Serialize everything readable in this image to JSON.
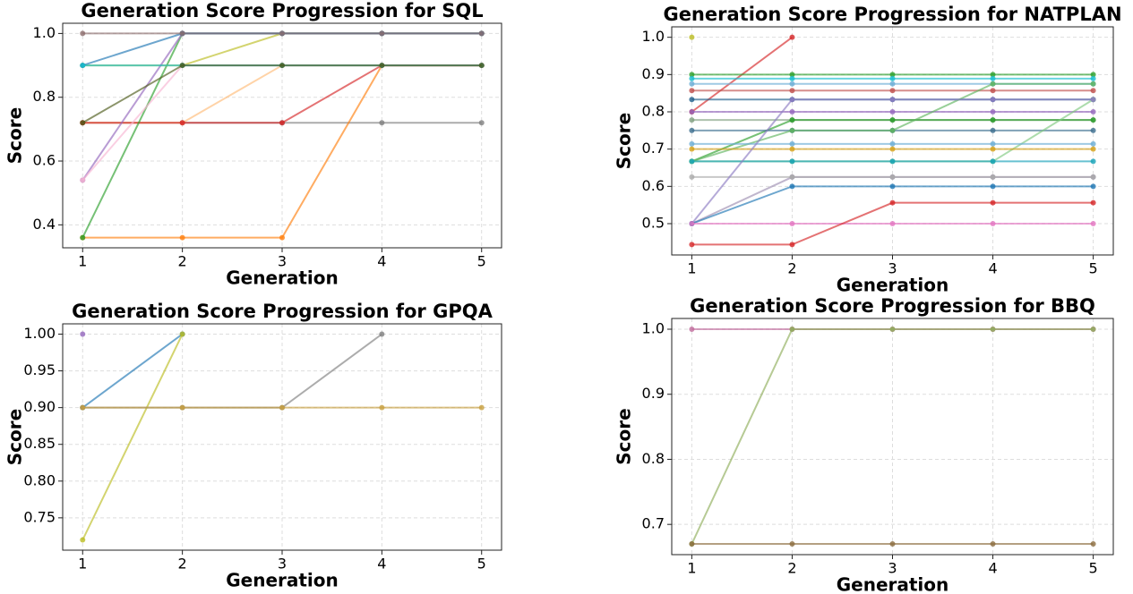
{
  "chart_data": [
    {
      "type": "line",
      "title": "Generation Score Progression for SQL",
      "x_label": "Generation",
      "y_label": "Score",
      "x": [
        1,
        2,
        3,
        4,
        5
      ],
      "xlim": [
        0.8,
        5.2
      ],
      "xticks": [
        1,
        2,
        3,
        4,
        5
      ],
      "ylim": [
        0.328,
        1.032
      ],
      "yticks": [
        0.4,
        0.6,
        0.8,
        {
          "value": 1,
          "label": "1.0"
        }
      ],
      "grid": true,
      "series": [
        {
          "color": "#7f7f7f",
          "values": [
            0.72,
            0.72,
            0.72,
            0.72,
            0.72
          ]
        },
        {
          "color": "#ff7f0e",
          "values": [
            0.36,
            0.36,
            0.36,
            0.9,
            0.9
          ]
        },
        {
          "color": "#ffbb78",
          "values": [
            0.72,
            0.72,
            0.9,
            0.9,
            0.9
          ]
        },
        {
          "color": "#d62728",
          "values": [
            0.72,
            0.72,
            0.72,
            0.9,
            0.9
          ]
        },
        {
          "color": "#2ca02c",
          "values": [
            0.36,
            1,
            1,
            1,
            1
          ]
        },
        {
          "color": "#bcbd22",
          "values": [
            0.9,
            0.9,
            1,
            1,
            1
          ]
        },
        {
          "color": "#9467bd",
          "values": [
            0.54,
            1,
            1,
            1,
            1
          ]
        },
        {
          "color": "#f7b6d2",
          "values": [
            0.54,
            0.9,
            0.9,
            0.9,
            0.9
          ]
        },
        {
          "color": "#1f77b4",
          "values": [
            0.9,
            1,
            1,
            1,
            1
          ]
        },
        {
          "color": "#17becf",
          "values": [
            0.9,
            0.9,
            0.9,
            0.9,
            0.9
          ]
        },
        {
          "color": "#4d5a1a",
          "values": [
            0.72,
            0.9,
            0.9,
            0.9,
            0.9
          ]
        },
        {
          "color": "#8c6d6d",
          "values": [
            1,
            1,
            1,
            1,
            1
          ]
        }
      ]
    },
    {
      "type": "line",
      "title": "Generation Score Progression for NATPLAN",
      "x_label": "Generation",
      "y_label": "Score",
      "x": [
        1,
        2,
        3,
        4,
        5
      ],
      "xlim": [
        0.8,
        5.2
      ],
      "xticks": [
        1,
        2,
        3,
        4,
        5
      ],
      "ylim": [
        0.416,
        1.028
      ],
      "yticks": [
        0.5,
        0.6,
        0.7,
        0.8,
        0.9,
        {
          "value": 1,
          "label": "1.0"
        }
      ],
      "grid": true,
      "series": [
        {
          "color": "#bcbd22",
          "values": [
            1,
            null,
            null,
            null,
            null
          ]
        },
        {
          "color": "#d62728",
          "values": [
            0.8,
            1,
            null,
            null,
            null
          ]
        },
        {
          "color": "#2ca02c",
          "values": [
            0.9,
            0.9,
            0.9,
            0.9,
            0.9
          ]
        },
        {
          "color": "#17becf",
          "values": [
            0.889,
            0.889,
            0.889,
            0.889,
            0.889
          ]
        },
        {
          "color": "#6baed6",
          "values": [
            0.875,
            0.875,
            0.875,
            0.875,
            0.875
          ]
        },
        {
          "color": "#c0504d",
          "values": [
            0.857,
            0.857,
            0.857,
            0.857,
            0.857
          ]
        },
        {
          "color": "#1f5f8b",
          "values": [
            0.833,
            0.833,
            0.833,
            0.833,
            0.833
          ]
        },
        {
          "color": "#9467bd",
          "values": [
            0.8,
            0.8,
            0.8,
            0.8,
            0.8
          ]
        },
        {
          "color": "#7f9f7f",
          "values": [
            0.778,
            0.778,
            0.778,
            0.778,
            0.778
          ]
        },
        {
          "color": "#2ca02c",
          "values": [
            0.667,
            0.778,
            0.778,
            0.778,
            0.778
          ]
        },
        {
          "color": "#3c6e8f",
          "values": [
            0.75,
            0.75,
            0.75,
            0.75,
            0.75
          ]
        },
        {
          "color": "#5fb55f",
          "values": [
            0.667,
            0.75,
            0.75,
            0.875,
            0.875
          ]
        },
        {
          "color": "#7fc97f",
          "values": [
            0.667,
            0.667,
            0.667,
            0.667,
            0.833
          ]
        },
        {
          "color": "#6baed6",
          "values": [
            0.714,
            0.714,
            0.714,
            0.714,
            0.714
          ]
        },
        {
          "color": "#d4a017",
          "values": [
            0.7,
            0.7,
            0.7,
            0.7,
            0.7
          ]
        },
        {
          "color": "#17a2b8",
          "values": [
            0.667,
            0.667,
            0.667,
            0.667,
            0.667
          ]
        },
        {
          "color": "#9e8fb2",
          "values": [
            0.5,
            0.625,
            0.625,
            0.625,
            0.625
          ]
        },
        {
          "color": "#aaaaaa",
          "values": [
            0.625,
            0.625,
            0.625,
            0.625,
            0.625
          ]
        },
        {
          "color": "#8e7cc3",
          "values": [
            0.5,
            0.833,
            0.833,
            0.833,
            0.833
          ]
        },
        {
          "color": "#1f77b4",
          "values": [
            0.5,
            0.6,
            0.6,
            0.6,
            0.6
          ]
        },
        {
          "color": "#e377c2",
          "values": [
            0.5,
            0.5,
            0.5,
            0.5,
            0.5
          ]
        },
        {
          "color": "#d62728",
          "values": [
            0.444,
            0.444,
            0.556,
            0.556,
            0.556
          ]
        }
      ]
    },
    {
      "type": "line",
      "title": "Generation Score Progression for GPQA",
      "x_label": "Generation",
      "y_label": "Score",
      "x": [
        1,
        2,
        3,
        4,
        5
      ],
      "xlim": [
        0.8,
        5.2
      ],
      "xticks": [
        1,
        2,
        3,
        4,
        5
      ],
      "ylim": [
        0.706,
        1.014
      ],
      "yticks": [
        {
          "value": 0.75,
          "label": "0.75"
        },
        {
          "value": 0.8,
          "label": "0.80"
        },
        {
          "value": 0.85,
          "label": "0.85"
        },
        {
          "value": 0.9,
          "label": "0.90"
        },
        {
          "value": 0.95,
          "label": "0.95"
        },
        {
          "value": 1,
          "label": "1.00"
        }
      ],
      "grid": true,
      "series": [
        {
          "color": "#9467bd",
          "values": [
            1,
            null,
            null,
            null,
            null
          ]
        },
        {
          "color": "#1f77b4",
          "values": [
            0.9,
            1,
            null,
            null,
            null
          ]
        },
        {
          "color": "#bcbd22",
          "values": [
            0.72,
            1,
            null,
            null,
            null
          ]
        },
        {
          "color": "#7f7f7f",
          "values": [
            0.9,
            0.9,
            0.9,
            1,
            null
          ]
        },
        {
          "color": "#c8a040",
          "values": [
            0.9,
            0.9,
            0.9,
            0.9,
            0.9
          ]
        }
      ]
    },
    {
      "type": "line",
      "title": "Generation Score Progression for BBQ",
      "x_label": "Generation",
      "y_label": "Score",
      "x": [
        1,
        2,
        3,
        4,
        5
      ],
      "xlim": [
        0.8,
        5.2
      ],
      "xticks": [
        1,
        2,
        3,
        4,
        5
      ],
      "ylim": [
        0.6535,
        1.0165
      ],
      "yticks": [
        0.7,
        0.8,
        0.9,
        {
          "value": 1,
          "label": "1.0"
        }
      ],
      "grid": true,
      "series": [
        {
          "color": "#c06c9c",
          "values": [
            1,
            1,
            1,
            1,
            1
          ]
        },
        {
          "color": "#8fae5a",
          "values": [
            0.67,
            1,
            1,
            1,
            1
          ]
        },
        {
          "color": "#8c6d3f",
          "values": [
            0.67,
            0.67,
            0.67,
            0.67,
            0.67
          ]
        }
      ]
    }
  ]
}
